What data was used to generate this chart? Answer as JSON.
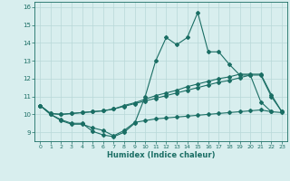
{
  "xlabel": "Humidex (Indice chaleur)",
  "x": [
    0,
    1,
    2,
    3,
    4,
    5,
    6,
    7,
    8,
    9,
    10,
    11,
    12,
    13,
    14,
    15,
    16,
    17,
    18,
    19,
    20,
    21,
    22,
    23
  ],
  "line1": [
    10.5,
    10.0,
    9.7,
    9.5,
    9.5,
    9.05,
    8.85,
    8.75,
    9.0,
    9.5,
    11.0,
    13.0,
    14.3,
    13.9,
    14.3,
    15.7,
    13.5,
    13.5,
    12.8,
    12.2,
    12.2,
    10.7,
    10.15,
    null
  ],
  "line2": [
    10.5,
    10.05,
    10.0,
    10.05,
    10.1,
    10.15,
    10.2,
    10.3,
    10.45,
    10.6,
    10.75,
    10.9,
    11.05,
    11.2,
    11.35,
    11.5,
    11.65,
    11.8,
    11.9,
    12.05,
    12.2,
    12.2,
    11.0,
    10.15
  ],
  "line3": [
    10.5,
    10.05,
    10.0,
    10.05,
    10.1,
    10.15,
    10.2,
    10.3,
    10.5,
    10.65,
    10.85,
    11.05,
    11.2,
    11.35,
    11.55,
    11.7,
    11.85,
    12.0,
    12.1,
    12.25,
    12.25,
    12.25,
    11.1,
    10.15
  ],
  "line4": [
    10.5,
    10.0,
    9.65,
    9.45,
    9.45,
    9.25,
    9.1,
    8.8,
    9.1,
    9.55,
    9.65,
    9.75,
    9.8,
    9.85,
    9.9,
    9.95,
    10.0,
    10.05,
    10.1,
    10.15,
    10.2,
    10.25,
    10.15,
    10.1
  ],
  "bg_color": "#d8eeee",
  "grid_color": "#b8d8d8",
  "line_color": "#1a6e64",
  "ylim": [
    8.5,
    16.3
  ],
  "yticks": [
    9,
    10,
    11,
    12,
    13,
    14,
    15,
    16
  ],
  "xticks": [
    0,
    1,
    2,
    3,
    4,
    5,
    6,
    7,
    8,
    9,
    10,
    11,
    12,
    13,
    14,
    15,
    16,
    17,
    18,
    19,
    20,
    21,
    22,
    23
  ]
}
